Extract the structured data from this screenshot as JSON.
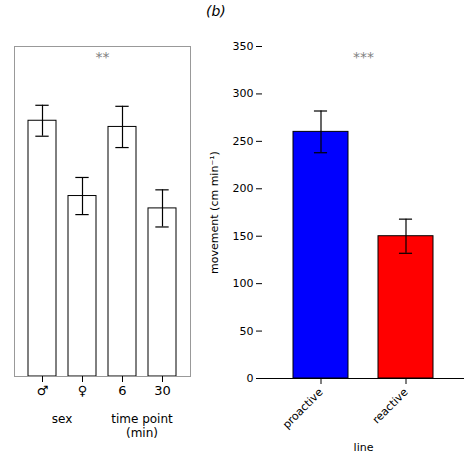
{
  "chart_data": [
    {
      "type": "bar",
      "categories": [
        "♂",
        "♀",
        "6",
        "30"
      ],
      "values": [
        248,
        175,
        242,
        163
      ],
      "errors": [
        15,
        18,
        20,
        18
      ],
      "color": "#ffffff",
      "group_labels": [
        "sex",
        "time point\n(min)"
      ],
      "annotations": [
        "**"
      ],
      "ylim": [
        0,
        320
      ],
      "yticks": [],
      "tick_labels": "x",
      "grid": false
    },
    {
      "type": "bar",
      "title": "(b)",
      "categories": [
        "proactive",
        "reactive"
      ],
      "values": [
        260,
        150
      ],
      "errors": [
        22,
        18
      ],
      "colors": [
        "#0000ff",
        "#ff0000"
      ],
      "xlabel": "line",
      "ylabel": "movement (cm min⁻¹)",
      "annotations": [
        "***"
      ],
      "ylim": [
        0,
        350
      ],
      "yticks": [
        0,
        50,
        100,
        150,
        200,
        250,
        300,
        350
      ],
      "grid": false
    }
  ]
}
